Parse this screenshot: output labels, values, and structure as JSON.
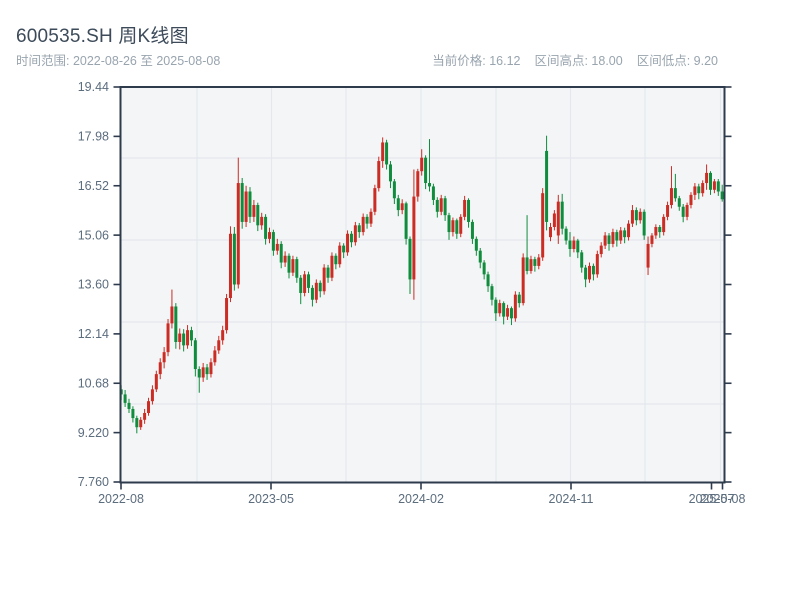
{
  "header": {
    "title": "600535.SH 周K线图",
    "range_label": "时间范围: 2022-08-26 至 2025-08-08",
    "stats": [
      "当前价格: 16.12",
      "区间高点: 18.00",
      "区间低点: 9.20"
    ]
  },
  "chart_data": {
    "type": "candlestick",
    "title": "600535.SH 周K线图",
    "symbol": "600535.SH",
    "interval": "weekly",
    "date_start": "2022-08-26",
    "date_end": "2025-08-08",
    "current_price": 16.12,
    "range_high": 18.0,
    "range_low": 9.2,
    "grid": true,
    "ylim": [
      7.76,
      19.44
    ],
    "y_tick_labels": [
      "19.44",
      "17.98",
      "16.52",
      "15.06",
      "13.60",
      "12.14",
      "10.68",
      "9.220",
      "7.760"
    ],
    "y_tick_values": [
      19.44,
      17.98,
      16.52,
      15.06,
      13.6,
      12.14,
      10.68,
      9.22,
      7.76
    ],
    "x_tick_labels": [
      "2022-08",
      "2023-05",
      "2024-02",
      "2024-11",
      "2025-07",
      "2025-08"
    ],
    "colors": {
      "up": "#cb2c24",
      "down": "#0f8c3c",
      "spine": "#2e3b4c",
      "tick_label": "#5c6d7e",
      "grid": "#e4e8ed",
      "plot_bg": "#f4f5f7"
    },
    "candles_ohlc": [
      [
        10.5,
        10.62,
        10.18,
        10.35
      ],
      [
        10.35,
        10.48,
        9.98,
        10.1
      ],
      [
        10.1,
        10.22,
        9.8,
        9.92
      ],
      [
        9.92,
        10.0,
        9.52,
        9.65
      ],
      [
        9.65,
        9.72,
        9.2,
        9.38
      ],
      [
        9.38,
        9.68,
        9.3,
        9.6
      ],
      [
        9.6,
        9.92,
        9.48,
        9.8
      ],
      [
        9.8,
        10.25,
        9.72,
        10.15
      ],
      [
        10.15,
        10.62,
        10.05,
        10.5
      ],
      [
        10.5,
        11.05,
        10.42,
        10.95
      ],
      [
        10.95,
        11.42,
        10.8,
        11.3
      ],
      [
        11.3,
        11.75,
        11.12,
        11.6
      ],
      [
        11.6,
        12.58,
        11.48,
        12.45
      ],
      [
        12.45,
        13.45,
        12.3,
        12.95
      ],
      [
        12.95,
        13.05,
        11.7,
        11.9
      ],
      [
        11.9,
        12.3,
        11.68,
        12.15
      ],
      [
        12.15,
        12.28,
        11.62,
        11.8
      ],
      [
        11.8,
        12.4,
        11.7,
        12.25
      ],
      [
        12.25,
        12.35,
        11.78,
        11.95
      ],
      [
        11.95,
        12.02,
        10.88,
        11.1
      ],
      [
        11.1,
        11.18,
        10.4,
        10.85
      ],
      [
        10.85,
        11.28,
        10.72,
        11.15
      ],
      [
        11.15,
        11.25,
        10.78,
        10.95
      ],
      [
        10.95,
        11.42,
        10.85,
        11.3
      ],
      [
        11.3,
        11.78,
        11.2,
        11.65
      ],
      [
        11.65,
        12.08,
        11.55,
        11.95
      ],
      [
        11.95,
        12.38,
        11.82,
        12.25
      ],
      [
        12.25,
        13.32,
        12.15,
        13.2
      ],
      [
        13.2,
        15.32,
        13.08,
        15.1
      ],
      [
        15.1,
        15.3,
        13.42,
        13.6
      ],
      [
        13.6,
        17.35,
        13.48,
        16.6
      ],
      [
        16.6,
        16.75,
        15.25,
        15.45
      ],
      [
        15.45,
        16.52,
        15.3,
        16.35
      ],
      [
        16.35,
        16.48,
        15.42,
        15.6
      ],
      [
        15.6,
        16.1,
        15.45,
        15.95
      ],
      [
        15.95,
        16.02,
        15.18,
        15.35
      ],
      [
        15.35,
        15.72,
        15.22,
        15.6
      ],
      [
        15.6,
        15.68,
        14.78,
        14.95
      ],
      [
        14.95,
        15.28,
        14.82,
        15.15
      ],
      [
        15.15,
        15.22,
        14.45,
        14.6
      ],
      [
        14.6,
        14.95,
        14.48,
        14.8
      ],
      [
        14.8,
        14.88,
        14.08,
        14.25
      ],
      [
        14.25,
        14.58,
        14.12,
        14.45
      ],
      [
        14.45,
        14.52,
        13.78,
        13.95
      ],
      [
        13.95,
        14.45,
        13.85,
        14.35
      ],
      [
        14.35,
        14.42,
        13.65,
        13.8
      ],
      [
        13.8,
        13.88,
        13.02,
        13.35
      ],
      [
        13.35,
        14.0,
        13.25,
        13.9
      ],
      [
        13.9,
        13.98,
        13.35,
        13.5
      ],
      [
        13.5,
        13.58,
        12.95,
        13.15
      ],
      [
        13.15,
        13.75,
        13.05,
        13.65
      ],
      [
        13.65,
        13.72,
        13.22,
        13.4
      ],
      [
        13.4,
        14.2,
        13.3,
        14.1
      ],
      [
        14.1,
        14.18,
        13.65,
        13.8
      ],
      [
        13.8,
        14.55,
        13.7,
        14.45
      ],
      [
        14.45,
        14.52,
        14.05,
        14.2
      ],
      [
        14.2,
        14.85,
        14.1,
        14.75
      ],
      [
        14.75,
        14.82,
        14.38,
        14.55
      ],
      [
        14.55,
        15.2,
        14.45,
        15.1
      ],
      [
        15.1,
        15.18,
        14.7,
        14.85
      ],
      [
        14.85,
        15.45,
        14.75,
        15.35
      ],
      [
        15.35,
        15.42,
        14.98,
        15.15
      ],
      [
        15.15,
        15.7,
        15.05,
        15.6
      ],
      [
        15.6,
        15.68,
        15.25,
        15.4
      ],
      [
        15.4,
        15.85,
        15.3,
        15.75
      ],
      [
        15.75,
        16.55,
        15.65,
        16.45
      ],
      [
        16.45,
        17.38,
        16.35,
        17.25
      ],
      [
        17.25,
        17.95,
        17.05,
        17.8
      ],
      [
        17.8,
        17.88,
        17.0,
        17.15
      ],
      [
        17.15,
        17.25,
        16.45,
        16.65
      ],
      [
        16.65,
        16.72,
        15.98,
        16.15
      ],
      [
        16.15,
        16.25,
        15.62,
        15.8
      ],
      [
        15.8,
        16.12,
        15.68,
        16.0
      ],
      [
        16.0,
        16.05,
        14.78,
        14.95
      ],
      [
        14.95,
        15.02,
        13.32,
        13.75
      ],
      [
        13.75,
        17.0,
        13.15,
        16.2
      ],
      [
        16.2,
        17.02,
        16.05,
        16.95
      ],
      [
        16.95,
        17.6,
        16.82,
        17.35
      ],
      [
        17.35,
        17.42,
        16.42,
        16.6
      ],
      [
        16.6,
        17.9,
        16.35,
        16.5
      ],
      [
        16.5,
        16.58,
        15.95,
        16.1
      ],
      [
        16.1,
        16.18,
        15.58,
        15.75
      ],
      [
        15.75,
        16.25,
        15.65,
        16.15
      ],
      [
        16.15,
        16.22,
        15.48,
        15.65
      ],
      [
        15.65,
        15.72,
        14.92,
        15.15
      ],
      [
        15.15,
        15.58,
        15.02,
        15.5
      ],
      [
        15.5,
        15.55,
        14.95,
        15.1
      ],
      [
        15.1,
        15.68,
        15.0,
        15.6
      ],
      [
        15.6,
        16.22,
        15.5,
        16.1
      ],
      [
        16.1,
        16.15,
        15.28,
        15.45
      ],
      [
        15.45,
        15.52,
        14.8,
        14.95
      ],
      [
        14.95,
        15.02,
        14.45,
        14.6
      ],
      [
        14.6,
        14.68,
        14.08,
        14.25
      ],
      [
        14.25,
        14.32,
        13.75,
        13.9
      ],
      [
        13.9,
        13.98,
        13.38,
        13.55
      ],
      [
        13.55,
        13.62,
        12.98,
        13.15
      ],
      [
        13.15,
        13.22,
        12.52,
        12.75
      ],
      [
        12.75,
        13.15,
        12.65,
        13.05
      ],
      [
        13.05,
        13.1,
        12.42,
        12.65
      ],
      [
        12.65,
        13.0,
        12.55,
        12.9
      ],
      [
        12.9,
        12.95,
        12.4,
        12.6
      ],
      [
        12.6,
        13.4,
        12.5,
        13.3
      ],
      [
        13.3,
        13.38,
        12.92,
        13.05
      ],
      [
        13.05,
        14.52,
        12.98,
        14.4
      ],
      [
        14.4,
        15.65,
        13.9,
        14.0
      ],
      [
        14.0,
        14.45,
        13.92,
        14.35
      ],
      [
        14.35,
        14.42,
        13.98,
        14.15
      ],
      [
        14.15,
        14.5,
        14.05,
        14.4
      ],
      [
        14.4,
        16.45,
        14.3,
        16.3
      ],
      [
        17.55,
        18.0,
        15.2,
        15.45
      ],
      [
        15.0,
        15.42,
        14.88,
        15.3
      ],
      [
        15.3,
        15.8,
        15.2,
        15.7
      ],
      [
        15.05,
        16.25,
        14.8,
        16.05
      ],
      [
        16.05,
        16.28,
        15.08,
        15.25
      ],
      [
        15.25,
        15.32,
        14.78,
        14.9
      ],
      [
        14.9,
        15.15,
        14.42,
        14.65
      ],
      [
        14.65,
        15.02,
        14.55,
        14.9
      ],
      [
        14.9,
        14.95,
        14.38,
        14.55
      ],
      [
        14.55,
        14.62,
        13.95,
        14.1
      ],
      [
        14.1,
        14.18,
        13.52,
        13.75
      ],
      [
        13.75,
        14.25,
        13.65,
        14.15
      ],
      [
        14.15,
        14.22,
        13.72,
        13.9
      ],
      [
        13.9,
        14.6,
        13.8,
        14.5
      ],
      [
        14.5,
        14.85,
        14.4,
        14.75
      ],
      [
        14.75,
        15.15,
        14.65,
        15.05
      ],
      [
        15.05,
        15.12,
        14.6,
        14.8
      ],
      [
        14.8,
        15.25,
        14.7,
        15.15
      ],
      [
        15.15,
        15.22,
        14.72,
        14.9
      ],
      [
        14.9,
        15.3,
        14.8,
        15.2
      ],
      [
        15.2,
        15.28,
        14.82,
        15.0
      ],
      [
        15.0,
        15.5,
        14.9,
        15.4
      ],
      [
        15.4,
        15.95,
        15.3,
        15.8
      ],
      [
        15.8,
        15.88,
        15.35,
        15.5
      ],
      [
        15.5,
        15.85,
        15.4,
        15.75
      ],
      [
        15.75,
        15.82,
        14.92,
        15.05
      ],
      [
        14.1,
        15.02,
        13.88,
        14.8
      ],
      [
        14.8,
        15.12,
        14.7,
        15.05
      ],
      [
        15.05,
        15.38,
        14.95,
        15.3
      ],
      [
        15.3,
        15.36,
        14.98,
        15.15
      ],
      [
        15.15,
        15.68,
        15.05,
        15.6
      ],
      [
        15.6,
        16.05,
        15.5,
        15.95
      ],
      [
        15.95,
        17.1,
        15.85,
        16.45
      ],
      [
        16.45,
        16.87,
        16.05,
        16.15
      ],
      [
        16.15,
        16.22,
        15.78,
        15.9
      ],
      [
        15.9,
        15.98,
        15.44,
        15.6
      ],
      [
        15.6,
        16.02,
        15.5,
        15.95
      ],
      [
        15.95,
        16.33,
        15.85,
        16.25
      ],
      [
        16.25,
        16.6,
        16.1,
        16.5
      ],
      [
        16.5,
        16.58,
        16.12,
        16.3
      ],
      [
        16.3,
        16.68,
        16.2,
        16.6
      ],
      [
        16.6,
        17.15,
        16.4,
        16.9
      ],
      [
        16.9,
        16.95,
        16.25,
        16.4
      ],
      [
        16.4,
        16.72,
        16.3,
        16.65
      ],
      [
        16.65,
        16.72,
        16.22,
        16.35
      ],
      [
        16.35,
        16.55,
        16.05,
        16.12
      ]
    ]
  }
}
